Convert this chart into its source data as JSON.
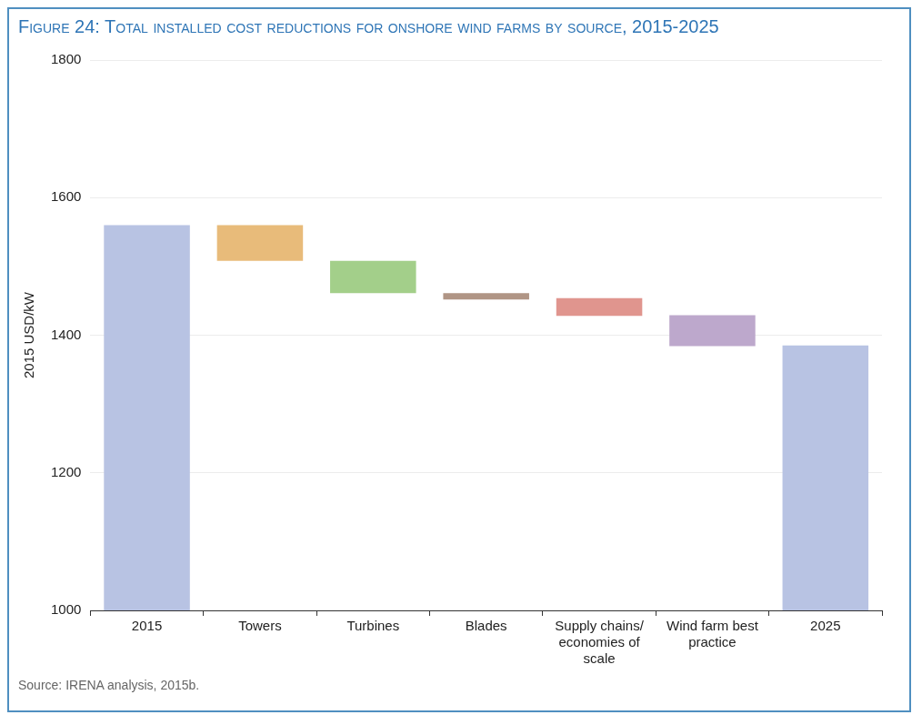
{
  "chart_data": {
    "type": "bar",
    "title": "Figure 24: Total installed cost reductions for onshore wind farms by source, 2015-2025",
    "ylabel": "2015 USD/kW",
    "categories": [
      "2015",
      "Towers",
      "Turbines",
      "Blades",
      "Supply chains/ economies of scale",
      "Wind farm best practice",
      "2025"
    ],
    "values": [
      560,
      -52,
      -47,
      -9,
      -26,
      -45,
      385
    ],
    "base": [
      1000,
      1560,
      1508,
      1461,
      1454,
      1429,
      1000
    ],
    "colors": [
      "#b8c3e3",
      "#e8bb7a",
      "#a3cf8a",
      "#b09585",
      "#e0958e",
      "#bda8cc",
      "#b8c3e3"
    ],
    "ylim": [
      1000,
      1800
    ],
    "yticks": [
      1000,
      1200,
      1400,
      1600,
      1800
    ],
    "grid": "y",
    "annotations": [
      "Source: IRENA analysis, 2015b."
    ]
  }
}
